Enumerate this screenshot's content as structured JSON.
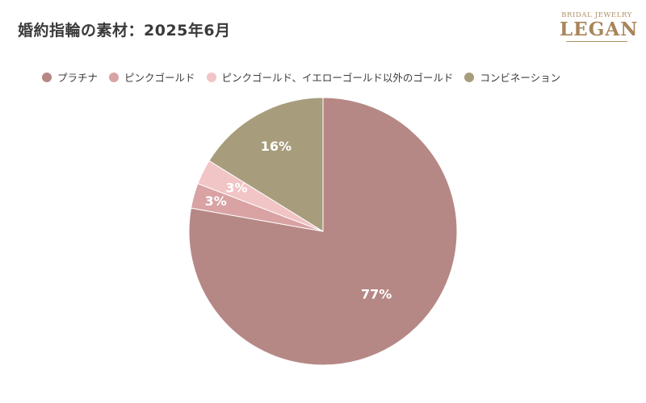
{
  "title": "婚約指輪の素材：2025年6月",
  "logo": {
    "tagline": "BRIDAL JEWELRY",
    "name": "LEGAN"
  },
  "chart_data": {
    "type": "pie",
    "title": "婚約指輪の素材：2025年6月",
    "legend_position": "top",
    "slices": [
      {
        "label": "プラチナ",
        "value": 77,
        "value_label": "77%",
        "color": "#b68885"
      },
      {
        "label": "ピンクゴールド",
        "value": 3,
        "value_label": "3%",
        "color": "#d9a2a3"
      },
      {
        "label": "ピンクゴールド、イエローゴールド以外のゴールド",
        "value": 3,
        "value_label": "3%",
        "color": "#f1c4c5"
      },
      {
        "label": "コンビネーション",
        "value": 16,
        "value_label": "16%",
        "color": "#a79d7c"
      }
    ]
  }
}
